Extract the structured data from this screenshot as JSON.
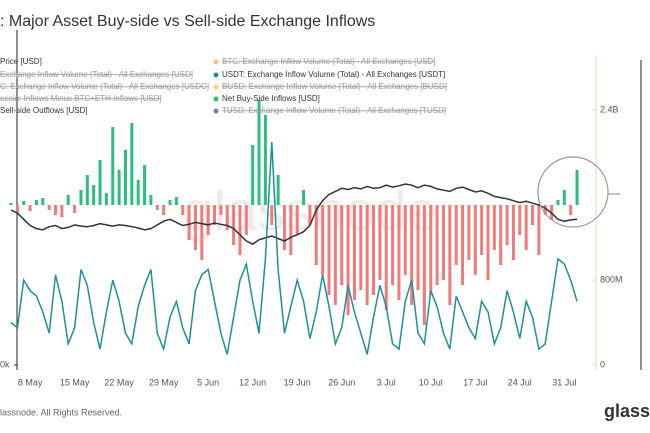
{
  "chart_data": {
    "type": "combo",
    "title": ": Major Asset Buy-side vs Sell-side Exchange Inflows",
    "watermark": "glassnode",
    "footer": "lassnode. All Rights Reserved.",
    "logo": "glass",
    "categories": [
      null,
      null,
      null,
      "8 May",
      null,
      null,
      null,
      null,
      null,
      null,
      "15 May",
      null,
      null,
      null,
      null,
      null,
      null,
      "22 May",
      null,
      null,
      null,
      null,
      null,
      null,
      "29 May",
      null,
      null,
      null,
      null,
      null,
      null,
      "5 Jun",
      null,
      null,
      null,
      null,
      null,
      null,
      "12 Jun",
      null,
      null,
      null,
      null,
      null,
      null,
      "19 Jun",
      null,
      null,
      null,
      null,
      null,
      null,
      "26 Jun",
      null,
      null,
      null,
      null,
      null,
      null,
      "3 Jul",
      null,
      null,
      null,
      null,
      null,
      null,
      "10 Jul",
      null,
      null,
      null,
      null,
      null,
      null,
      "17 Jul",
      null,
      null,
      null,
      null,
      null,
      null,
      "24 Jul",
      null,
      null,
      null,
      null,
      null,
      null,
      "31 Jul",
      null,
      null
    ],
    "ylim": [
      0,
      50
    ],
    "yticks": [
      {
        "value": 0,
        "label": "0k"
      }
    ],
    "y2lim": [
      0,
      2.92
    ],
    "y2ticks": [
      0,
      {
        "value": 0.8,
        "label": "800M"
      },
      {
        "value": 2.4,
        "label": "2.4B"
      }
    ],
    "y3lim": [
      -1.6,
      1.5
    ],
    "series": [
      {
        "name": "Price [USD]",
        "kind": "line",
        "color": "#333333",
        "axis": "y",
        "values": [
          25,
          24.5,
          23.5,
          22.5,
          22,
          21.8,
          22.3,
          22.5,
          22,
          22.2,
          22.6,
          22.4,
          22.3,
          22.5,
          22.8,
          22.6,
          22.4,
          22.6,
          22.5,
          22.3,
          22.1,
          21.8,
          22,
          22.6,
          23.2,
          23.5,
          23,
          22.5,
          22.7,
          23,
          22.8,
          22.6,
          22.9,
          22.7,
          22.5,
          22,
          21,
          20,
          19.5,
          20.2,
          20.5,
          20.8,
          20.4,
          20,
          20.6,
          21,
          21.5,
          22.5,
          25,
          26.5,
          27.5,
          28,
          28.5,
          28.3,
          28.6,
          28.4,
          28.8,
          28.5,
          28.6,
          29,
          28.7,
          28.9,
          29.2,
          29,
          28.6,
          29,
          28.8,
          28.4,
          28.2,
          28,
          28.5,
          28.7,
          28.3,
          27.9,
          28.1,
          27.7,
          27.2,
          27,
          26.8,
          26.5,
          26.2,
          26.4,
          26.1,
          25.8,
          25.3,
          24.5,
          23.5,
          23.2,
          23.4,
          23.5
        ]
      },
      {
        "name": "USDT: Exchange Inflow Volume (Total) - All Exchanges [USDT]",
        "kind": "line",
        "color": "#1f8f9c",
        "axis": "y2",
        "values": [
          0.4,
          0.35,
          0.8,
          0.7,
          0.65,
          0.5,
          0.3,
          0.85,
          0.6,
          0.2,
          0.35,
          0.9,
          0.75,
          0.4,
          0.15,
          0.5,
          0.8,
          0.6,
          0.3,
          0.2,
          0.55,
          0.75,
          0.9,
          0.3,
          0.15,
          0.45,
          0.6,
          0.35,
          0.2,
          0.7,
          0.85,
          0.9,
          0.6,
          0.3,
          0.1,
          0.45,
          0.8,
          0.95,
          0.6,
          0.3,
          1.0,
          2.1,
          0.9,
          0.3,
          0.55,
          0.8,
          0.6,
          0.25,
          0.5,
          0.85,
          0.55,
          0.2,
          0.35,
          0.75,
          0.5,
          0.3,
          0.1,
          0.45,
          0.75,
          0.55,
          0.2,
          0.15,
          0.6,
          0.8,
          0.3,
          0.2,
          0.7,
          0.55,
          0.3,
          0.15,
          0.65,
          0.5,
          0.35,
          0.25,
          0.6,
          0.5,
          0.2,
          0.35,
          0.7,
          0.5,
          0.25,
          0.6,
          0.45,
          0.15,
          0.2,
          0.6,
          1.0,
          0.95,
          0.8,
          0.6
        ]
      },
      {
        "name": "Net Buy-Side Inflows [USD]",
        "kind": "bar",
        "color": "#2ebd7e",
        "axis": "y3",
        "values": [
          0.02,
          null,
          0.04,
          null,
          0.05,
          0.07,
          null,
          null,
          null,
          0.1,
          null,
          0.15,
          0.3,
          0.2,
          0.45,
          0.12,
          0.78,
          0.35,
          0.55,
          0.82,
          0.25,
          0.4,
          0.1,
          null,
          null,
          0.05,
          0.08,
          null,
          null,
          null,
          null,
          null,
          null,
          null,
          null,
          null,
          null,
          null,
          0.6,
          1.05,
          0.9,
          null,
          0.3,
          null,
          null,
          null,
          0.15,
          null,
          null,
          null,
          null,
          null,
          null,
          null,
          null,
          null,
          null,
          null,
          null,
          null,
          null,
          null,
          null,
          null,
          null,
          null,
          null,
          null,
          null,
          null,
          null,
          null,
          null,
          null,
          null,
          null,
          null,
          null,
          null,
          null,
          null,
          null,
          null,
          null,
          null,
          null,
          0.05,
          0.15,
          null,
          0.35
        ]
      },
      {
        "name": "Sell-side Outflows [USD]",
        "kind": "bar",
        "color": "#ef7b7b",
        "axis": "y3",
        "values": [
          null,
          -0.08,
          null,
          -0.06,
          null,
          null,
          -0.05,
          -0.1,
          -0.12,
          null,
          -0.08,
          null,
          null,
          null,
          null,
          null,
          null,
          null,
          null,
          null,
          null,
          null,
          null,
          -0.05,
          -0.1,
          null,
          null,
          -0.1,
          -0.35,
          -0.45,
          -0.55,
          -0.3,
          -0.2,
          -0.1,
          -0.25,
          -0.4,
          -0.5,
          -0.3,
          null,
          null,
          null,
          -0.2,
          null,
          -0.45,
          -0.5,
          -0.3,
          null,
          -0.2,
          -0.6,
          -0.7,
          -0.9,
          -1.0,
          -0.8,
          -1.1,
          -0.95,
          -0.85,
          -1.0,
          -0.9,
          -0.75,
          -1.05,
          -0.8,
          -0.95,
          -0.7,
          -1.0,
          -0.85,
          -1.2,
          -0.9,
          -0.8,
          -0.75,
          -1.0,
          -0.6,
          -0.8,
          -0.55,
          -0.7,
          -0.5,
          -0.75,
          -0.45,
          -0.6,
          -0.4,
          -0.55,
          -0.3,
          -0.45,
          -0.2,
          -0.5,
          -0.1,
          -0.15,
          null,
          null,
          -0.1,
          null
        ]
      }
    ],
    "inactive_series": [
      {
        "name": "Exchange Inflow Volume (Total) - All Exchanges [USD]"
      },
      {
        "name": "C: Exchange Inflow Volume (Total) - All Exchanges [USDC]"
      },
      {
        "name": "ecoin: Inflows Minus BTC+ETH Inflows [USD]"
      },
      {
        "name": "BTC: Exchange Inflow Volume (Total) - All Exchanges [USD]",
        "color": "#f7931a"
      },
      {
        "name": "BUSD: Exchange Inflow Volume (Total) - All Exchanges [BUSD]",
        "color": "#f0b90b"
      },
      {
        "name": "TUSD: Exchange Inflow Volume (Total) - All Exchanges [TUSD]",
        "color": "#1a237e"
      }
    ]
  }
}
